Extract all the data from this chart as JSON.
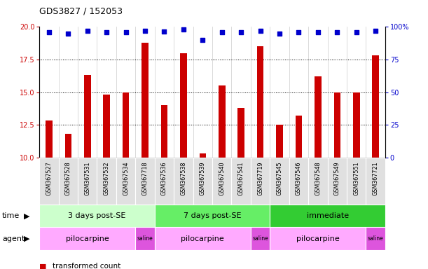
{
  "title": "GDS3827 / 152053",
  "samples": [
    "GSM367527",
    "GSM367528",
    "GSM367531",
    "GSM367532",
    "GSM367534",
    "GSM367718",
    "GSM367536",
    "GSM367538",
    "GSM367539",
    "GSM367540",
    "GSM367541",
    "GSM367719",
    "GSM367545",
    "GSM367546",
    "GSM367548",
    "GSM367549",
    "GSM367551",
    "GSM367721"
  ],
  "bar_values": [
    12.8,
    11.8,
    16.3,
    14.8,
    15.0,
    18.8,
    14.0,
    18.0,
    10.3,
    15.5,
    13.8,
    18.5,
    12.5,
    13.2,
    16.2,
    15.0,
    15.0,
    17.8
  ],
  "percentile_values": [
    96,
    95,
    97,
    96,
    96,
    97,
    96.5,
    98,
    90,
    96,
    96,
    97,
    95,
    96,
    96,
    96,
    96,
    97
  ],
  "bar_color": "#cc0000",
  "dot_color": "#0000cc",
  "ylim_left": [
    10,
    20
  ],
  "ylim_right": [
    0,
    100
  ],
  "yticks_left": [
    10,
    12.5,
    15,
    17.5,
    20
  ],
  "yticks_right": [
    0,
    25,
    50,
    75,
    100
  ],
  "time_groups": [
    {
      "label": "3 days post-SE",
      "start": 0,
      "end": 5,
      "color": "#ccffcc"
    },
    {
      "label": "7 days post-SE",
      "start": 6,
      "end": 11,
      "color": "#66ee66"
    },
    {
      "label": "immediate",
      "start": 12,
      "end": 17,
      "color": "#33cc33"
    }
  ],
  "agent_groups": [
    {
      "label": "pilocarpine",
      "start": 0,
      "end": 4,
      "color": "#ffaaff"
    },
    {
      "label": "saline",
      "start": 5,
      "end": 5,
      "color": "#dd55dd"
    },
    {
      "label": "pilocarpine",
      "start": 6,
      "end": 10,
      "color": "#ffaaff"
    },
    {
      "label": "saline",
      "start": 11,
      "end": 11,
      "color": "#dd55dd"
    },
    {
      "label": "pilocarpine",
      "start": 12,
      "end": 16,
      "color": "#ffaaff"
    },
    {
      "label": "saline",
      "start": 17,
      "end": 17,
      "color": "#dd55dd"
    }
  ],
  "background_color": "#ffffff",
  "bar_width": 0.35
}
